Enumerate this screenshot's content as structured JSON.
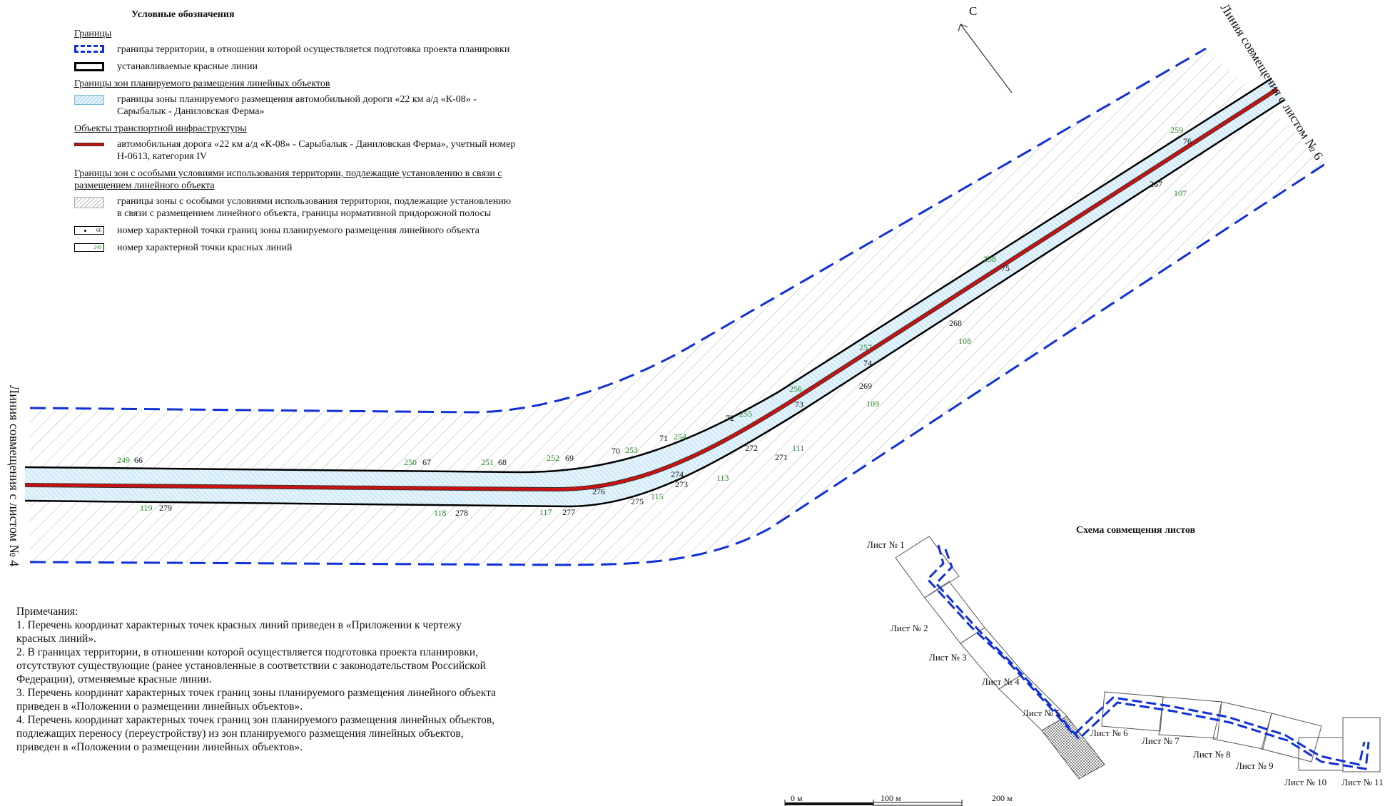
{
  "legend": {
    "title": "Условные обозначения",
    "groups": [
      {
        "heading": "Границы",
        "items": [
          {
            "swatch": "boundary-dashed-blue",
            "text": "границы территории, в отношении которой осуществляется подготовка проекта планировки"
          },
          {
            "swatch": "red-lines-black",
            "text": "устанавливаемые красные линии"
          }
        ]
      },
      {
        "heading": "Границы зон планируемого размещения линейных объектов",
        "items": [
          {
            "swatch": "hatch-blue",
            "text": "границы зоны планируемого размещения автомобильной дороги «22 км а/д «К-08» - Сарыбалык - Даниловская Ферма»"
          }
        ]
      },
      {
        "heading": "Объекты транспортной инфраструктуры",
        "items": [
          {
            "swatch": "road-red",
            "text": "автомобильная дорога «22 км а/д «К-08» - Сарыбалык - Даниловская Ферма», учетный номер Н-0613, категория IV"
          }
        ]
      },
      {
        "heading": "Границы зон с особыми условиями использования территории, подлежащие установлению в связи с размещением линейного объекта",
        "items": [
          {
            "swatch": "hatch-gray",
            "text": "границы зоны с особыми условиями использования территории, подлежащие установлению в связи с размещением линейного объекта, границы нормативной придорожной полосы"
          },
          {
            "swatch": "point-black",
            "swatch_text": "66",
            "text": "номер характерной точки границ зоны планируемого размещения линейного объекта"
          },
          {
            "swatch": "point-green",
            "swatch_text": "249",
            "text": "номер характерной точки красных линий"
          }
        ]
      }
    ]
  },
  "north_label": "С",
  "match_lines": {
    "left": "Линия совмещения с листом № 4",
    "right": "Линия совмещения с листом № 6"
  },
  "points_black": [
    "66",
    "67",
    "68",
    "69",
    "70",
    "71",
    "72",
    "73",
    "74",
    "75",
    "76",
    "267",
    "268",
    "269",
    "271",
    "272",
    "273",
    "274",
    "275",
    "276",
    "278",
    "279",
    "277"
  ],
  "points_green": [
    "249",
    "250",
    "251",
    "252",
    "253",
    "254",
    "255",
    "256",
    "257",
    "258",
    "259",
    "107",
    "108",
    "109",
    "111",
    "113",
    "115",
    "117",
    "118",
    "119"
  ],
  "notes": {
    "heading": "Примечания:",
    "items": [
      "1. Перечень координат характерных точек красных линий приведен в «Приложении к чертежу красных линий».",
      "2. В границах территории, в отношении которой осуществляется подготовка проекта планировки, отсутствуют существующие (ранее установленные в соответствии с законодательством Российской Федерации), отменяемые красные линии.",
      "3. Перечень координат характерных точек границ зоны планируемого размещения линейного объекта приведен в «Положении о размещении линейных объектов».",
      "4. Перечень координат характерных точек границ зон планируемого размещения линейных объектов, подлежащих переносу (переустройству) из зон планируемого размещения линейных объектов, приведен в «Положении о размещении линейных объектов»."
    ]
  },
  "scheme": {
    "title": "Схема совмещения листов",
    "sheets": [
      "Лист № 1",
      "Лист № 2",
      "Лист № 3",
      "Лист № 4",
      "Лист № 5",
      "Лист № 6",
      "Лист № 7",
      "Лист № 8",
      "Лист № 9",
      "Лист № 10",
      "Лист № 11"
    ]
  },
  "scale": [
    "0 м",
    "100 м",
    "200 м"
  ],
  "colors": {
    "boundary": "#1030d8",
    "road": "#cc1111",
    "red_line": "#000000",
    "green_label": "#2a8a2a"
  }
}
